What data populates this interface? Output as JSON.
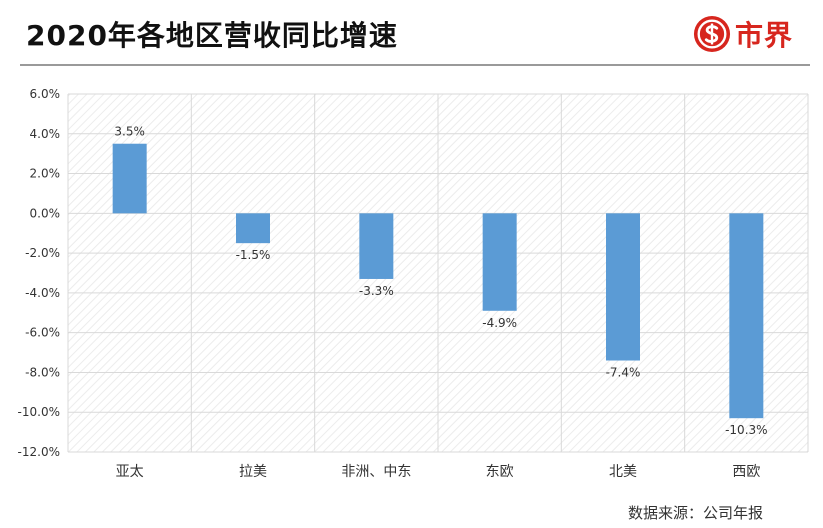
{
  "header": {
    "title": "2020年各地区营收同比增速",
    "brand_name": "市界",
    "brand_logo_icon": "dollar-s-circle-icon"
  },
  "footer": {
    "source": "数据来源：公司年报"
  },
  "colors": {
    "bar": "#5b9bd5",
    "brand": "#d7261e",
    "grid": "#d9d9d9"
  },
  "chart_data": {
    "type": "bar",
    "categories": [
      "亚太",
      "拉美",
      "非洲、中东",
      "东欧",
      "北美",
      "西欧"
    ],
    "values": [
      3.5,
      -1.5,
      -3.3,
      -4.9,
      -7.4,
      -10.3
    ],
    "data_labels": [
      "3.5%",
      "-1.5%",
      "-3.3%",
      "-4.9%",
      "-7.4%",
      "-10.3%"
    ],
    "title": "2020年各地区营收同比增速",
    "xlabel": "",
    "ylabel": "",
    "ylim": [
      -12,
      6
    ],
    "yticks": [
      6,
      4,
      2,
      0,
      -2,
      -4,
      -6,
      -8,
      -10,
      -12
    ],
    "ytick_labels": [
      "6.0%",
      "4.0%",
      "2.0%",
      "0.0%",
      "-2.0%",
      "-4.0%",
      "-6.0%",
      "-8.0%",
      "-10.0%",
      "-12.0%"
    ],
    "grid": true,
    "legend": "none"
  }
}
